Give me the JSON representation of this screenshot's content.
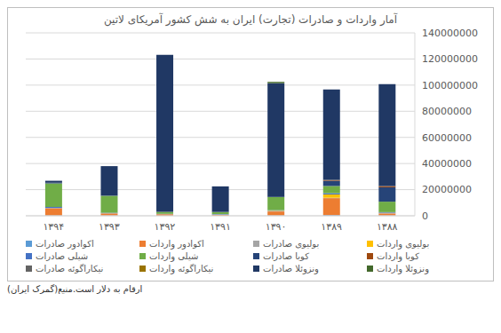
{
  "chart_data": {
    "type": "bar",
    "title": "آمار واردات و صادرات (تجارت)  ایران به شش کشور آمریکای لاتین",
    "annotations": [
      "ارقام به دلار است.منبع(گمرک ایران)"
    ],
    "categories": [
      "۱۳۹۴",
      "۱۳۹۳",
      "۱۳۹۲",
      "۱۳۹۱",
      "۱۳۹۰",
      "۱۳۸۹",
      "۱۳۸۸"
    ],
    "stacked": true,
    "grid": true,
    "legend": "bottom",
    "ylim": [
      0,
      140000000
    ],
    "yticks": [
      0,
      20000000,
      40000000,
      60000000,
      80000000,
      100000000,
      120000000,
      140000000
    ],
    "series": [
      {
        "name": "اکوادور صادرات",
        "color": "#5B9BD5",
        "values": [
          300000,
          300000,
          200000,
          200000,
          300000,
          500000,
          300000
        ]
      },
      {
        "name": "اکوادور واردات",
        "color": "#ED7D31",
        "values": [
          5500000,
          1500000,
          1000000,
          500000,
          3000000,
          13000000,
          1500000
        ]
      },
      {
        "name": "بولیوی صادرات",
        "color": "#A5A5A5",
        "values": [
          200000,
          200000,
          100000,
          300000,
          500000,
          300000,
          300000
        ]
      },
      {
        "name": "بولیوی واردات",
        "color": "#FFC000",
        "values": [
          0,
          0,
          0,
          0,
          200000,
          2500000,
          200000
        ]
      },
      {
        "name": "شیلی صادرات",
        "color": "#4472C4",
        "values": [
          800000,
          300000,
          200000,
          300000,
          300000,
          1000000,
          500000
        ]
      },
      {
        "name": "شیلی واردات",
        "color": "#70AD47",
        "values": [
          18000000,
          13000000,
          1500000,
          1500000,
          10000000,
          5500000,
          8000000
        ]
      },
      {
        "name": "کوبا صادرات",
        "color": "#264478",
        "values": [
          500000,
          200000,
          100000,
          200000,
          200000,
          4000000,
          11000000
        ]
      },
      {
        "name": "کوبا واردات",
        "color": "#9E480E",
        "values": [
          0,
          0,
          0,
          0,
          0,
          500000,
          800000
        ]
      },
      {
        "name": "نیکاراگوئه صادرات",
        "color": "#636363",
        "values": [
          0,
          0,
          0,
          0,
          0,
          300000,
          200000
        ]
      },
      {
        "name": "نیکاراگوئه واردات",
        "color": "#997300",
        "values": [
          0,
          0,
          0,
          0,
          0,
          0,
          0
        ]
      },
      {
        "name": "ونزوئلا صادرات",
        "color": "#203864",
        "values": [
          1500000,
          22500000,
          120000000,
          19500000,
          87000000,
          69000000,
          78000000
        ]
      },
      {
        "name": "ونزوئلا واردات",
        "color": "#43682B",
        "values": [
          0,
          0,
          0,
          0,
          1000000,
          0,
          0
        ]
      }
    ]
  }
}
